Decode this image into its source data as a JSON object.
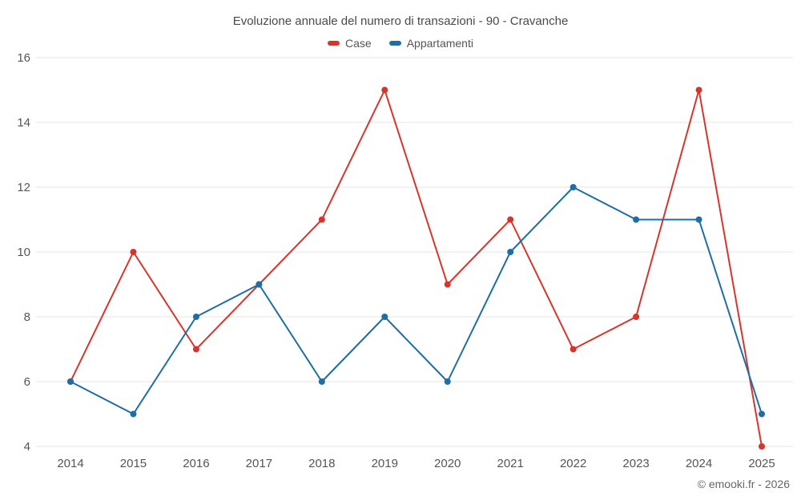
{
  "chart_data": {
    "type": "line",
    "title": "Evoluzione annuale del numero di transazioni - 90 - Cravanche",
    "categories": [
      "2014",
      "2015",
      "2016",
      "2017",
      "2018",
      "2019",
      "2020",
      "2021",
      "2022",
      "2023",
      "2024",
      "2025"
    ],
    "series": [
      {
        "name": "Case",
        "color": "#d8342c",
        "values": [
          6,
          10,
          7,
          9,
          11,
          15,
          9,
          11,
          7,
          8,
          15,
          4
        ]
      },
      {
        "name": "Appartamenti",
        "color": "#1c6ea4",
        "values": [
          6,
          5,
          8,
          9,
          6,
          8,
          6,
          10,
          12,
          11,
          11,
          5
        ]
      }
    ],
    "ylim": [
      4,
      16
    ],
    "yticks": [
      4,
      6,
      8,
      10,
      12,
      14,
      16
    ],
    "grid": "horizontal",
    "legend_position": "top",
    "xlabel": "",
    "ylabel": ""
  },
  "legend": {
    "items": [
      {
        "label": "Case"
      },
      {
        "label": "Appartamenti"
      }
    ]
  },
  "footer": {
    "credit": "© emooki.fr - 2026"
  },
  "colors": {
    "gridline": "#e6e6e6",
    "tick_label": "#555555",
    "title": "#4a4a4a"
  }
}
